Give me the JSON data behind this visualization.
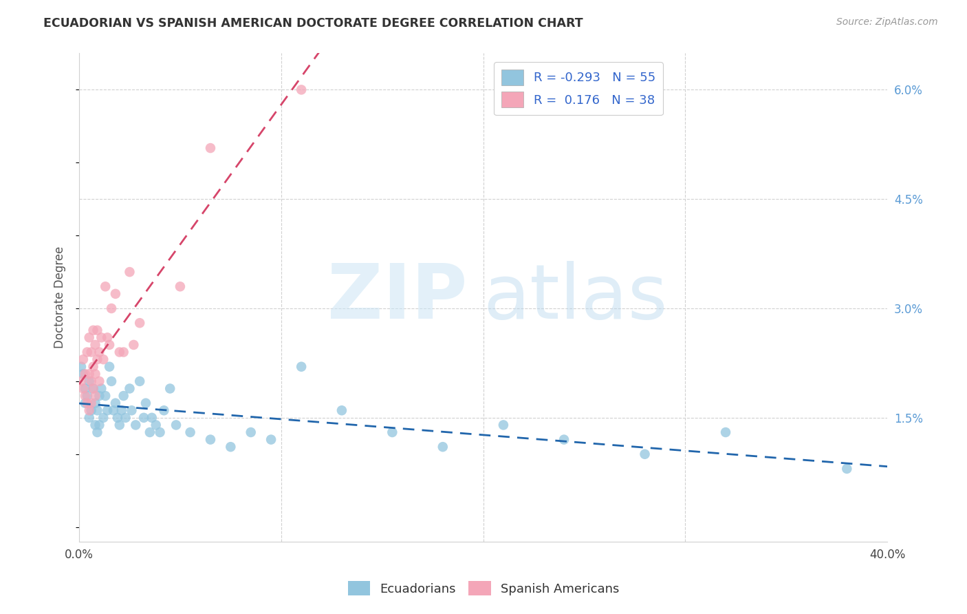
{
  "title": "ECUADORIAN VS SPANISH AMERICAN DOCTORATE DEGREE CORRELATION CHART",
  "source": "Source: ZipAtlas.com",
  "ylabel": "Doctorate Degree",
  "xmin": 0.0,
  "xmax": 0.4,
  "ymin": -0.002,
  "ymax": 0.065,
  "legend_R1": "R = -0.293",
  "legend_N1": "N = 55",
  "legend_R2": "R =  0.176",
  "legend_N2": "N = 38",
  "color_blue": "#92c5de",
  "color_pink": "#f4a6b8",
  "color_line_blue": "#2166ac",
  "color_line_pink": "#d6456a",
  "blue_x": [
    0.001,
    0.002,
    0.003,
    0.003,
    0.004,
    0.005,
    0.005,
    0.006,
    0.007,
    0.008,
    0.008,
    0.009,
    0.009,
    0.01,
    0.01,
    0.011,
    0.012,
    0.013,
    0.014,
    0.015,
    0.016,
    0.017,
    0.018,
    0.019,
    0.02,
    0.021,
    0.022,
    0.023,
    0.025,
    0.026,
    0.028,
    0.03,
    0.032,
    0.033,
    0.035,
    0.036,
    0.038,
    0.04,
    0.042,
    0.045,
    0.048,
    0.055,
    0.065,
    0.075,
    0.085,
    0.095,
    0.11,
    0.13,
    0.155,
    0.18,
    0.21,
    0.24,
    0.28,
    0.32,
    0.38
  ],
  "blue_y": [
    0.022,
    0.021,
    0.019,
    0.017,
    0.018,
    0.02,
    0.015,
    0.016,
    0.019,
    0.017,
    0.014,
    0.016,
    0.013,
    0.018,
    0.014,
    0.019,
    0.015,
    0.018,
    0.016,
    0.022,
    0.02,
    0.016,
    0.017,
    0.015,
    0.014,
    0.016,
    0.018,
    0.015,
    0.019,
    0.016,
    0.014,
    0.02,
    0.015,
    0.017,
    0.013,
    0.015,
    0.014,
    0.013,
    0.016,
    0.019,
    0.014,
    0.013,
    0.012,
    0.011,
    0.013,
    0.012,
    0.022,
    0.016,
    0.013,
    0.011,
    0.014,
    0.012,
    0.01,
    0.013,
    0.008
  ],
  "pink_x": [
    0.001,
    0.002,
    0.002,
    0.003,
    0.003,
    0.004,
    0.004,
    0.005,
    0.005,
    0.005,
    0.006,
    0.006,
    0.006,
    0.007,
    0.007,
    0.007,
    0.008,
    0.008,
    0.008,
    0.009,
    0.009,
    0.01,
    0.01,
    0.011,
    0.012,
    0.013,
    0.014,
    0.015,
    0.016,
    0.018,
    0.02,
    0.022,
    0.025,
    0.027,
    0.03,
    0.05,
    0.065,
    0.11
  ],
  "pink_y": [
    0.02,
    0.023,
    0.019,
    0.021,
    0.018,
    0.024,
    0.017,
    0.026,
    0.021,
    0.016,
    0.024,
    0.02,
    0.017,
    0.027,
    0.022,
    0.019,
    0.025,
    0.021,
    0.018,
    0.027,
    0.023,
    0.024,
    0.02,
    0.026,
    0.023,
    0.033,
    0.026,
    0.025,
    0.03,
    0.032,
    0.024,
    0.024,
    0.035,
    0.025,
    0.028,
    0.033,
    0.052,
    0.06
  ],
  "ytick_vals": [
    0.0,
    0.015,
    0.03,
    0.045,
    0.06
  ],
  "ytick_labels": [
    "",
    "1.5%",
    "3.0%",
    "4.5%",
    "6.0%"
  ],
  "xtick_vals": [
    0.0,
    0.1,
    0.2,
    0.3,
    0.4
  ],
  "xtick_labels": [
    "0.0%",
    "",
    "",
    "",
    "40.0%"
  ]
}
